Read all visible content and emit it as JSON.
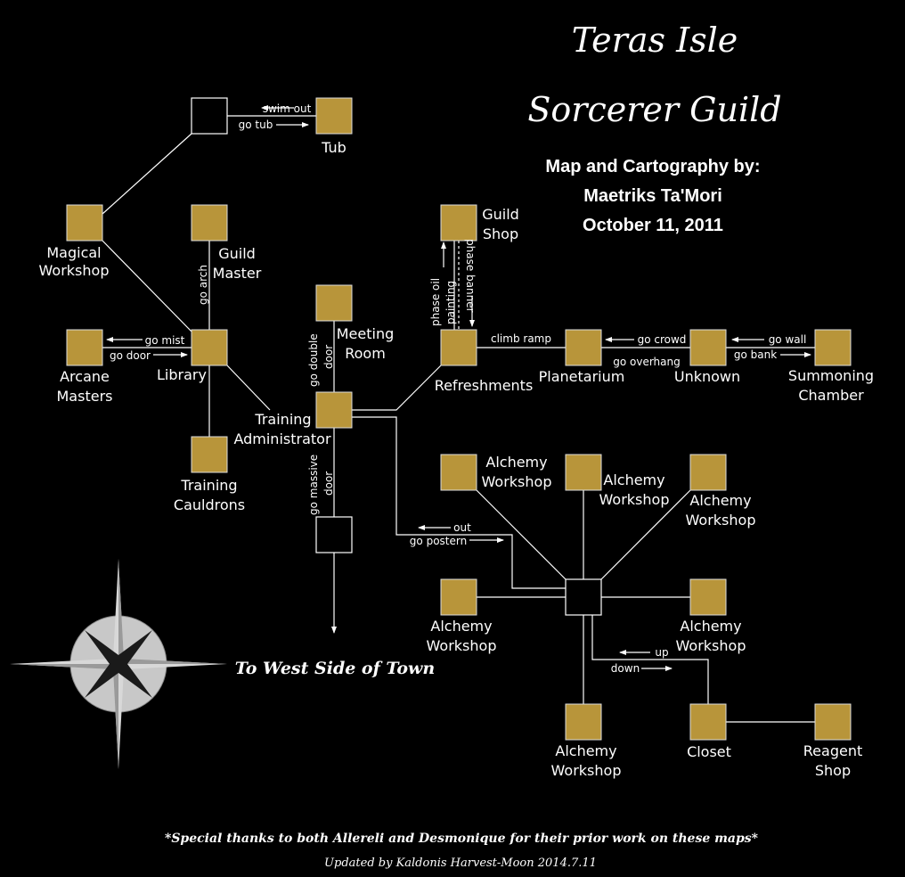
{
  "title": {
    "line1": "Teras Isle",
    "line2": "Sorcerer Guild"
  },
  "credits": {
    "line1": "Map and Cartography by:",
    "line2": "Maetriks Ta'Mori",
    "line3": "October 11, 2011"
  },
  "rooms": {
    "tub": "Tub",
    "magical_workshop": [
      "Magical",
      "Workshop"
    ],
    "guild_master": [
      "Guild",
      "Master"
    ],
    "guild_shop": [
      "Guild",
      "Shop"
    ],
    "arcane_masters": [
      "Arcane",
      "Masters"
    ],
    "library": "Library",
    "meeting_room": [
      "Meeting",
      "Room"
    ],
    "refreshments": "Refreshments",
    "planetarium": "Planetarium",
    "unknown": "Unknown",
    "summoning_chamber": [
      "Summoning",
      "Chamber"
    ],
    "training_administrator": [
      "Training",
      "Administrator"
    ],
    "training_cauldrons": [
      "Training",
      "Cauldrons"
    ],
    "alchemy_workshop": [
      "Alchemy",
      "Workshop"
    ],
    "closet": "Closet",
    "reagent_shop": [
      "Reagent",
      "Shop"
    ]
  },
  "exits": {
    "swim_out": "swim out",
    "go_tub": "go tub",
    "go_arch": "go arch",
    "go_mist": "go mist",
    "go_door": "go door",
    "go_double_door": [
      "go double",
      "door"
    ],
    "go_massive_door": [
      "go massive",
      "door"
    ],
    "phase_oil_painting": [
      "phase oil",
      "painting"
    ],
    "phase_banner": "phase banner",
    "climb_ramp": "climb ramp",
    "go_crowd": "go crowd",
    "go_overhang": "go overhang",
    "go_wall": "go wall",
    "go_bank": "go bank",
    "out": "out",
    "go_postern": "go postern",
    "up": "up",
    "down": "down"
  },
  "destination": "To West Side of Town",
  "footer": {
    "thanks": "*Special thanks to both Allereli and Desmonique for their prior work on these maps*",
    "updated": "Updated by Kaldonis Harvest-Moon 2014.7.11"
  },
  "colors": {
    "background": "#000000",
    "room": "#b8953a",
    "line": "#ffffff",
    "compass": "#c8c8c8"
  }
}
